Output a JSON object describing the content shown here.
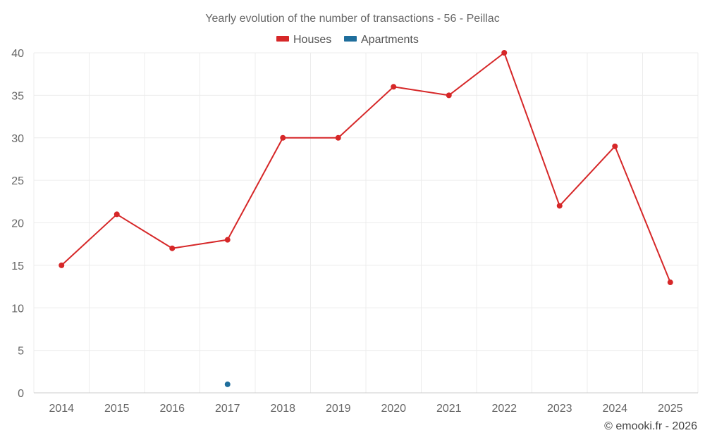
{
  "chart_data": {
    "type": "line",
    "title": "Yearly evolution of the number of transactions - 56 - Peillac",
    "categories": [
      "2014",
      "2015",
      "2016",
      "2017",
      "2018",
      "2019",
      "2020",
      "2021",
      "2022",
      "2023",
      "2024",
      "2025"
    ],
    "ylim": [
      0,
      40
    ],
    "yticks": [
      0,
      5,
      10,
      15,
      20,
      25,
      30,
      35,
      40
    ],
    "grid": true,
    "legend_position": "top-center",
    "series": [
      {
        "name": "Houses",
        "color": "#d62728",
        "values": [
          15,
          21,
          17,
          18,
          30,
          30,
          36,
          35,
          40,
          22,
          29,
          13
        ]
      },
      {
        "name": "Apartments",
        "color": "#1f6e9c",
        "values": [
          null,
          null,
          null,
          1,
          null,
          null,
          null,
          null,
          null,
          null,
          null,
          null
        ]
      }
    ],
    "xlabel": "",
    "ylabel": ""
  },
  "credit": "© emooki.fr - 2026"
}
